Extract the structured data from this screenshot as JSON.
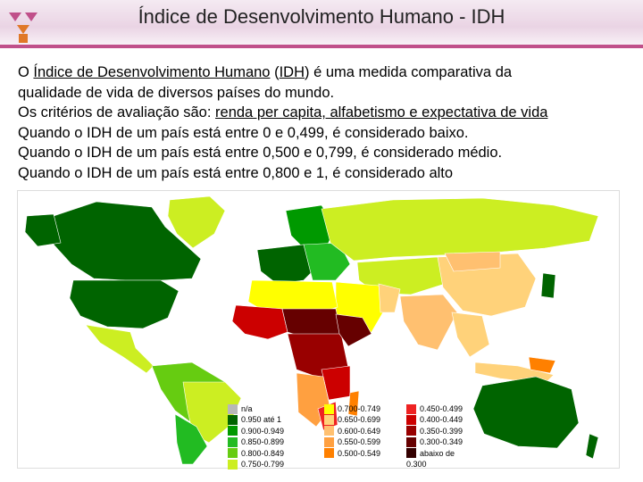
{
  "header": {
    "title": "Índice de Desenvolvimento Humano - IDH"
  },
  "intro": {
    "prefix": "O ",
    "term": "Índice de Desenvolvimento Humano",
    "abbr_open": " (",
    "abbr": "IDH",
    "abbr_close": ") é uma medida comparativa da",
    "line2": "qualidade de vida de diversos países do mundo.",
    "criteria_prefix": "Os critérios de avaliação são:",
    "criteria_list": "renda per capita, alfabetismo e expectativa de vida",
    "low": "Quando o IDH de um país está entre 0 e 0,499, é considerado baixo.",
    "medium": "Quando o IDH de um país está entre 0,500 e 0,799, é considerado médio.",
    "high": "Quando o IDH de um país está entre 0,800 e 1, é considerado alto"
  },
  "legend": {
    "col1": [
      {
        "label": "n/a",
        "color": "#b8b8b8"
      },
      {
        "label": "0.950 até 1",
        "color": "#006400"
      },
      {
        "label": "0.900-0.949",
        "color": "#009900"
      },
      {
        "label": "0.850-0.899",
        "color": "#22bb22"
      },
      {
        "label": "0.800-0.849",
        "color": "#66cc11"
      },
      {
        "label": "0.750-0.799",
        "color": "#ccee22"
      }
    ],
    "col2": [
      {
        "label": "0.700-0.749",
        "color": "#ffff00"
      },
      {
        "label": "0.650-0.699",
        "color": "#ffd27a"
      },
      {
        "label": "0.600-0.649",
        "color": "#ffc070"
      },
      {
        "label": "0.550-0.599",
        "color": "#ffa040"
      },
      {
        "label": "0.500-0.549",
        "color": "#ff8000"
      }
    ],
    "col3": [
      {
        "label": "0.450-0.499",
        "color": "#ee2222"
      },
      {
        "label": "0.400-0.449",
        "color": "#cc0000"
      },
      {
        "label": "0.350-0.399",
        "color": "#990000"
      },
      {
        "label": "0.300-0.349",
        "color": "#660000"
      },
      {
        "label": "abaixo de",
        "color": "#330000"
      },
      {
        "label": "0.300",
        "color": ""
      }
    ]
  }
}
